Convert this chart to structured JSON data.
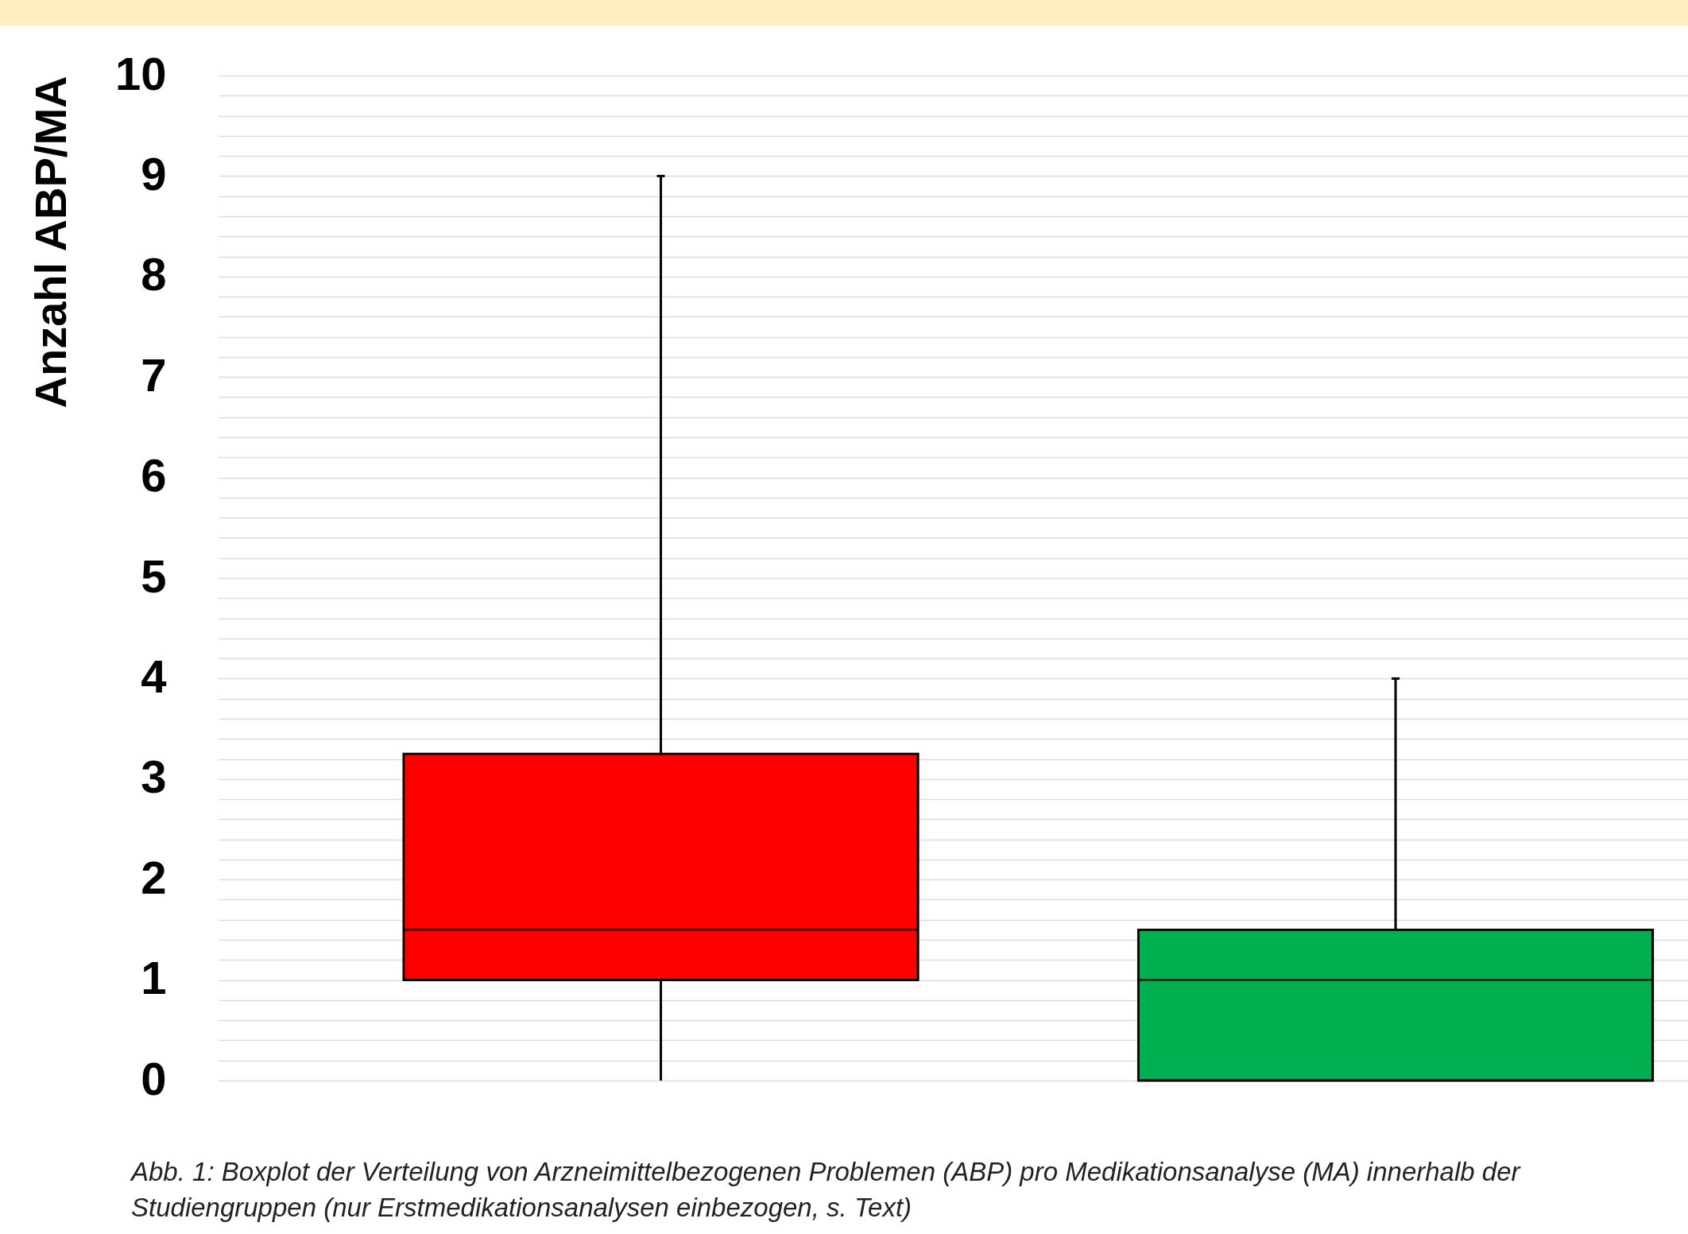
{
  "chart_data": {
    "type": "box",
    "ylabel": "Anzahl ABP/MA",
    "categories": [
      null,
      null
    ],
    "colors": [
      "#ff0000",
      "#00b050"
    ],
    "boxes": [
      {
        "low": 0,
        "q1": 1,
        "median": 1.5,
        "q3": 3.25,
        "high": 9
      },
      {
        "low": 0,
        "q1": 0,
        "median": 1,
        "q3": 1.5,
        "high": 4
      }
    ],
    "ylim": [
      0,
      10
    ],
    "yticks": [
      0,
      {
        "value": 0.2,
        "label": null
      },
      {
        "value": 0.4,
        "label": null
      },
      {
        "value": 0.6,
        "label": null
      },
      {
        "value": 0.8,
        "label": null
      },
      1,
      {
        "value": 1.2,
        "label": null
      },
      {
        "value": 1.4,
        "label": null
      },
      {
        "value": 1.6,
        "label": null
      },
      {
        "value": 1.8,
        "label": null
      },
      2,
      {
        "value": 2.2,
        "label": null
      },
      {
        "value": 2.4,
        "label": null
      },
      {
        "value": 2.6,
        "label": null
      },
      {
        "value": 2.8,
        "label": null
      },
      3,
      {
        "value": 3.2,
        "label": null
      },
      {
        "value": 3.4,
        "label": null
      },
      {
        "value": 3.6,
        "label": null
      },
      {
        "value": 3.8,
        "label": null
      },
      4,
      {
        "value": 4.2,
        "label": null
      },
      {
        "value": 4.4,
        "label": null
      },
      {
        "value": 4.6,
        "label": null
      },
      {
        "value": 4.8,
        "label": null
      },
      5,
      {
        "value": 5.2,
        "label": null
      },
      {
        "value": 5.4,
        "label": null
      },
      {
        "value": 5.6,
        "label": null
      },
      {
        "value": 5.8,
        "label": null
      },
      6,
      {
        "value": 6.2,
        "label": null
      },
      {
        "value": 6.4,
        "label": null
      },
      {
        "value": 6.6,
        "label": null
      },
      {
        "value": 6.8,
        "label": null
      },
      7,
      {
        "value": 7.2,
        "label": null
      },
      {
        "value": 7.4,
        "label": null
      },
      {
        "value": 7.6,
        "label": null
      },
      {
        "value": 7.8,
        "label": null
      },
      8,
      {
        "value": 8.2,
        "label": null
      },
      {
        "value": 8.4,
        "label": null
      },
      {
        "value": 8.6,
        "label": null
      },
      {
        "value": 8.8,
        "label": null
      },
      9,
      {
        "value": 9.2,
        "label": null
      },
      {
        "value": 9.4,
        "label": null
      },
      {
        "value": 9.6,
        "label": null
      },
      {
        "value": 9.8,
        "label": null
      },
      10
    ],
    "grid": true,
    "annotations": [
      "Abb. 1: Boxplot der Verteilung von Arzneimittelbezogenen Problemen (ABP) pro Medikationsanalyse (MA) innerhalb der Studiengruppen (nur Erstmedikationsanalysen einbezogen, s. Text)"
    ]
  }
}
